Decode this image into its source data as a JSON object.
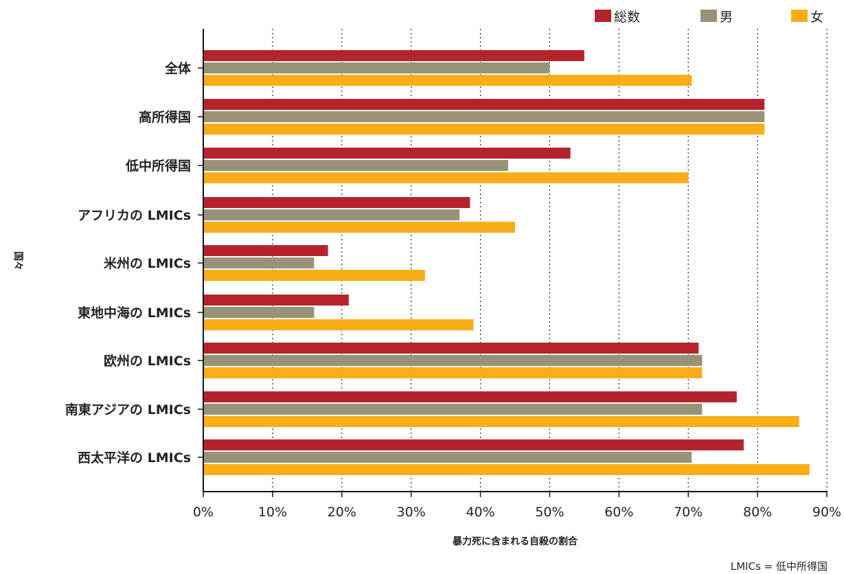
{
  "chart_data": {
    "type": "bar",
    "orientation": "horizontal",
    "categories": [
      "全体",
      "高所得国",
      "低中所得国",
      "アフリカの LMICs",
      "米州の LMICs",
      "東地中海の LMICs",
      "欧州の LMICs",
      "南東アジアの LMICs",
      "西太平洋の LMICs"
    ],
    "series": [
      {
        "name": "総数",
        "color": "#B5242D",
        "values": [
          55,
          81,
          53,
          38.5,
          18,
          21,
          71.5,
          77,
          78
        ]
      },
      {
        "name": "男",
        "color": "#9A9278",
        "values": [
          50,
          81,
          44,
          37,
          16,
          16,
          72,
          72,
          70.5
        ]
      },
      {
        "name": "女",
        "color": "#F9AE17",
        "values": [
          70.5,
          81,
          70,
          45,
          32,
          39,
          72,
          86,
          87.5
        ]
      }
    ],
    "xlabel": "暴力死に含まれる自殺の割合",
    "ylabel": "国々",
    "xlim": [
      0,
      90
    ],
    "x_ticks": [
      0,
      10,
      20,
      30,
      40,
      50,
      60,
      70,
      80,
      90
    ],
    "x_tick_labels": [
      "0%",
      "10%",
      "20%",
      "30%",
      "40%",
      "50%",
      "60%",
      "70%",
      "80%",
      "90%"
    ],
    "grid": "vertical-dotted",
    "legend_position": "top-right",
    "footnote": "LMICs = 低中所得国"
  }
}
